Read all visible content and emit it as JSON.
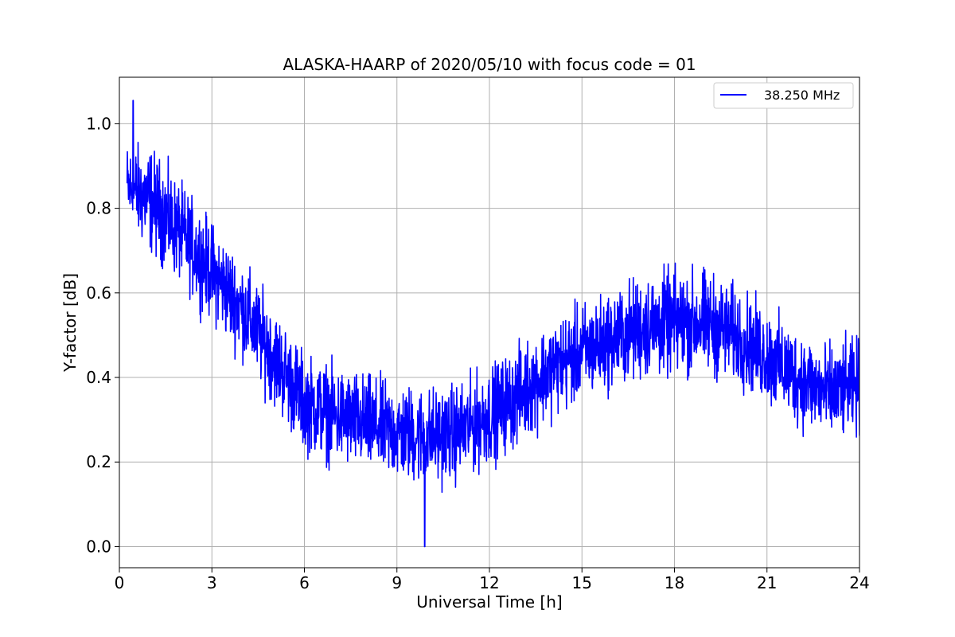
{
  "chart_data": {
    "type": "line",
    "title": "ALASKA-HAARP of 2020/05/10 with focus code = 01",
    "xlabel": "Universal Time [h]",
    "ylabel": "Y-factor [dB]",
    "xlim": [
      0,
      24
    ],
    "ylim": [
      -0.05,
      1.11
    ],
    "xticks": [
      0,
      3,
      6,
      9,
      12,
      15,
      18,
      21,
      24
    ],
    "yticks": [
      0.0,
      0.2,
      0.4,
      0.6,
      0.8,
      1.0
    ],
    "xtick_labels": [
      "0",
      "3",
      "6",
      "9",
      "12",
      "15",
      "18",
      "21",
      "24"
    ],
    "ytick_labels": [
      "0.0",
      "0.2",
      "0.4",
      "0.6",
      "0.8",
      "1.0"
    ],
    "grid": true,
    "legend_position": "top-right",
    "series": [
      {
        "name": "38.250 MHz",
        "color": "#0000ff",
        "x_start": 0.25,
        "x_end": 24,
        "envelope": {
          "x": [
            0.25,
            1,
            2,
            3,
            4,
            5,
            6,
            7,
            8,
            9,
            10,
            11,
            12,
            13,
            14,
            15,
            16,
            17,
            18,
            19,
            20,
            21,
            22,
            23,
            24
          ],
          "center": [
            0.85,
            0.82,
            0.74,
            0.65,
            0.56,
            0.45,
            0.34,
            0.31,
            0.29,
            0.27,
            0.26,
            0.27,
            0.31,
            0.36,
            0.42,
            0.46,
            0.49,
            0.52,
            0.53,
            0.53,
            0.5,
            0.45,
            0.4,
            0.36,
            0.38
          ],
          "spread": [
            0.11,
            0.13,
            0.12,
            0.12,
            0.12,
            0.12,
            0.12,
            0.12,
            0.12,
            0.12,
            0.12,
            0.12,
            0.12,
            0.12,
            0.12,
            0.12,
            0.12,
            0.13,
            0.13,
            0.13,
            0.12,
            0.12,
            0.12,
            0.12,
            0.12
          ]
        },
        "extremes": {
          "max": {
            "x": 0.45,
            "y": 1.055
          },
          "min": {
            "x": 9.9,
            "y": 0.0
          }
        }
      }
    ]
  }
}
